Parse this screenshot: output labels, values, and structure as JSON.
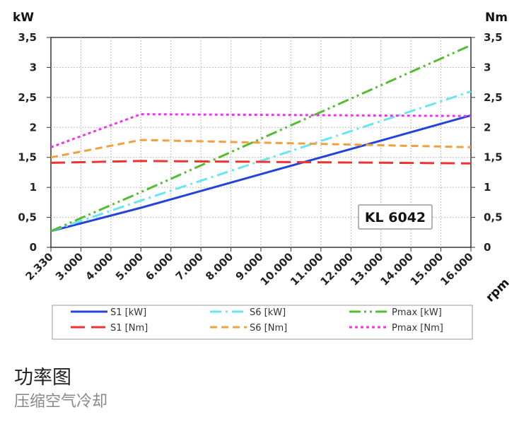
{
  "chart_data": {
    "type": "line",
    "left_unit": "kW",
    "right_unit": "Nm",
    "x_unit": "rpm",
    "x": [
      2330,
      3000,
      4000,
      5000,
      6000,
      7000,
      8000,
      9000,
      10000,
      11000,
      12000,
      13000,
      14000,
      15000,
      16000
    ],
    "x_tick_labels": [
      "2.330",
      "3.000",
      "4.000",
      "5.000",
      "6.000",
      "7.000",
      "8.000",
      "9.000",
      "10.000",
      "11.000",
      "12.000",
      "13.000",
      "14.000",
      "15.000",
      "16.000"
    ],
    "y_ticks": [
      "0",
      "0,5",
      "1",
      "1,5",
      "2",
      "2,5",
      "3",
      "3,5"
    ],
    "ylim": [
      0,
      3.5
    ],
    "grid": true,
    "badge": "KL 6042",
    "series": [
      {
        "name": "S1 [kW]",
        "color": "#2244dd",
        "style": "solid",
        "x": [
          2330,
          5000,
          16000
        ],
        "values": [
          0.27,
          0.66,
          2.2
        ]
      },
      {
        "name": "S6 [kW]",
        "color": "#66e6f0",
        "style": "dashdot",
        "x": [
          2330,
          5000,
          16000
        ],
        "values": [
          0.27,
          0.78,
          2.6
        ]
      },
      {
        "name": "Pmax [kW]",
        "color": "#55bb33",
        "style": "dashdotdot",
        "x": [
          2330,
          5000,
          16000
        ],
        "values": [
          0.27,
          0.92,
          3.37
        ]
      },
      {
        "name": "S1 [Nm]",
        "color": "#ee3333",
        "style": "longdash",
        "x": [
          2330,
          5000,
          16000
        ],
        "values": [
          1.41,
          1.44,
          1.4
        ]
      },
      {
        "name": "S6 [Nm]",
        "color": "#f0a040",
        "style": "dash",
        "x": [
          2330,
          5000,
          16000
        ],
        "values": [
          1.5,
          1.79,
          1.67
        ]
      },
      {
        "name": "Pmax [Nm]",
        "color": "#ee33ee",
        "style": "dot",
        "x": [
          2330,
          5000,
          16000
        ],
        "values": [
          1.67,
          2.22,
          2.19
        ]
      }
    ]
  },
  "caption": {
    "title": "功率图",
    "subtitle": "压缩空气冷却"
  }
}
